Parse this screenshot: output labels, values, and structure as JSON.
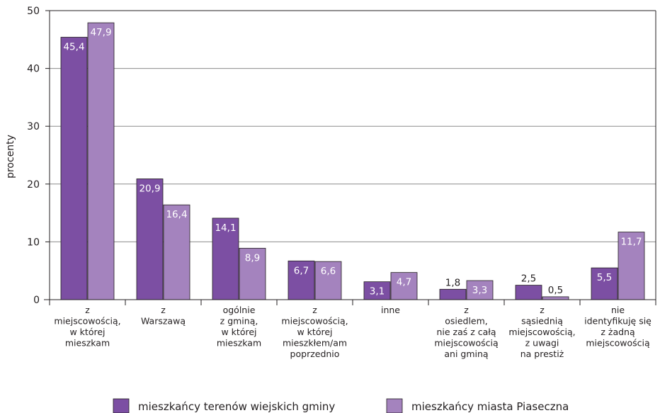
{
  "chart_data": {
    "type": "bar",
    "ylabel": "procenty",
    "ylim": [
      0,
      50
    ],
    "yticks": [
      0,
      10,
      20,
      30,
      40,
      50
    ],
    "grid": true,
    "legend_position": "bottom",
    "categories": [
      [
        "z",
        "miejscowością,",
        "w której",
        "mieszkam"
      ],
      [
        "z",
        "Warszawą"
      ],
      [
        "ogólnie",
        "z gminą,",
        "w której",
        "mieszkam"
      ],
      [
        "z",
        "miejscowością,",
        "w której",
        "mieszkłem/am",
        "poprzednio"
      ],
      [
        "inne"
      ],
      [
        "z",
        "osiedlem,",
        "nie zaś z całą",
        "miejscowością",
        "ani gminą"
      ],
      [
        "z",
        "sąsiednią",
        "miejscowością,",
        "z uwagi",
        "na prestiż"
      ],
      [
        "nie",
        "identyfikuję się",
        "z żadną",
        "miejscowością"
      ]
    ],
    "series": [
      {
        "name": "mieszkańcy terenów wiejskich gminy",
        "color": "#7c4fa3",
        "values": [
          45.4,
          20.9,
          14.1,
          6.7,
          3.1,
          1.8,
          2.5,
          5.5
        ],
        "labels": [
          "45,4",
          "20,9",
          "14,1",
          "6,7",
          "3,1",
          "1,8",
          "2,5",
          "5,5"
        ]
      },
      {
        "name": "mieszkańcy miasta Piaseczna",
        "color": "#a483be",
        "values": [
          47.9,
          16.4,
          8.9,
          6.6,
          4.7,
          3.3,
          0.5,
          11.7
        ],
        "labels": [
          "47,9",
          "16,4",
          "8,9",
          "6,6",
          "4,7",
          "3,3",
          "0,5",
          "11,7"
        ]
      }
    ]
  }
}
